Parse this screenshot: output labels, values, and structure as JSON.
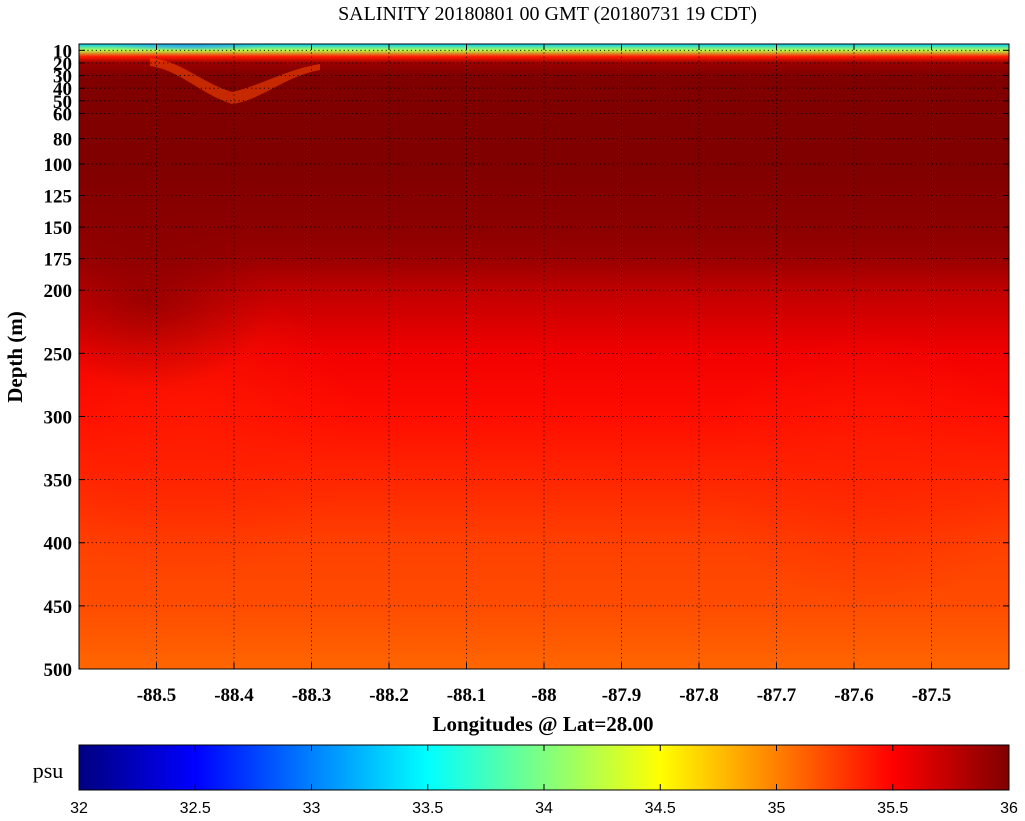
{
  "chart_data": {
    "type": "heatmap",
    "title": "SALINITY 20180801 00 GMT (20180731 19 CDT)",
    "xlabel": "Longitudes @ Lat=28.00",
    "ylabel": "Depth (m)",
    "xlim": [
      -88.6,
      -87.4
    ],
    "ylim": [
      500,
      5
    ],
    "x_ticks": [
      -88.5,
      -88.4,
      -88.3,
      -88.2,
      -88.1,
      -88.0,
      -87.9,
      -87.8,
      -87.7,
      -87.6,
      -87.5
    ],
    "x_tick_labels": [
      "-88.5",
      "-88.4",
      "-88.3",
      "-88.2",
      "-88.1",
      "-88",
      "-87.9",
      "-87.8",
      "-87.7",
      "-87.6",
      "-87.5"
    ],
    "y_ticks": [
      10,
      20,
      30,
      40,
      50,
      60,
      80,
      100,
      125,
      150,
      175,
      200,
      250,
      300,
      350,
      400,
      450,
      500
    ],
    "y_tick_labels": [
      "10",
      "20",
      "30",
      "40",
      "50",
      "60",
      "80",
      "100",
      "125",
      "150",
      "175",
      "200",
      "250",
      "300",
      "350",
      "400",
      "450",
      "500"
    ],
    "grid": true,
    "colorbar": {
      "label": "psu",
      "range": [
        32,
        36
      ],
      "ticks": [
        32,
        32.5,
        33,
        33.5,
        34,
        34.5,
        35,
        35.5,
        36
      ],
      "tick_labels": [
        "32",
        "32.5",
        "33",
        "33.5",
        "34",
        "34.5",
        "35",
        "35.5",
        "36"
      ],
      "colormap": "jet"
    },
    "salinity_profile": {
      "depths": [
        5,
        10,
        15,
        20,
        30,
        50,
        100,
        150,
        175,
        200,
        250,
        300,
        350,
        400,
        450,
        500
      ],
      "values": [
        33.3,
        34.2,
        35.4,
        35.9,
        36.0,
        36.0,
        36.0,
        35.95,
        35.9,
        35.75,
        35.55,
        35.45,
        35.35,
        35.25,
        35.2,
        35.1
      ]
    }
  }
}
